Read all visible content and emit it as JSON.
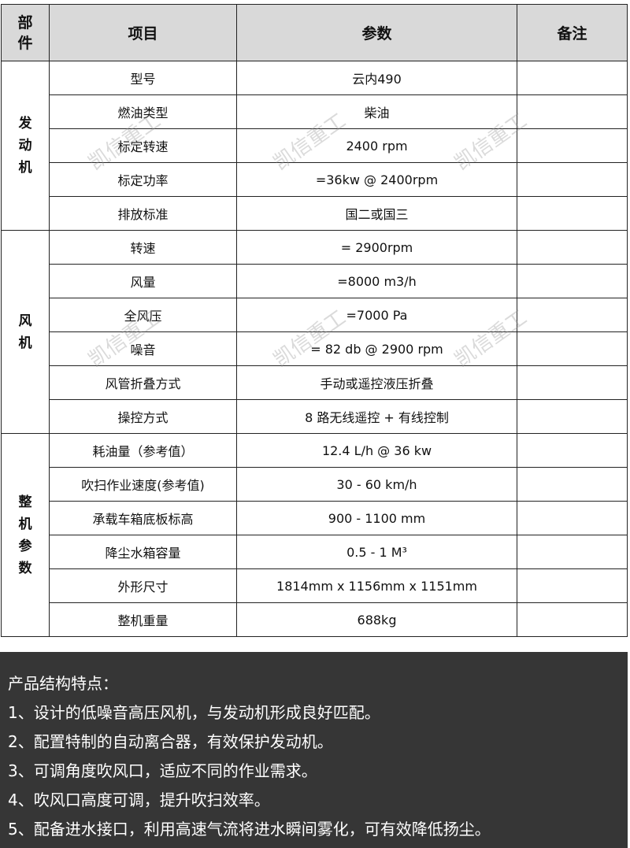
{
  "table": {
    "headers": [
      "部件",
      "项目",
      "参数",
      "备注"
    ],
    "groups": [
      {
        "name": "发动机",
        "rows": [
          {
            "item": "型号",
            "param": "云内490",
            "note": ""
          },
          {
            "item": "燃油类型",
            "param": "柴油",
            "note": ""
          },
          {
            "item": "标定转速",
            "param": "2400 rpm",
            "note": ""
          },
          {
            "item": "标定功率",
            "param": "=36kw @ 2400rpm",
            "note": ""
          },
          {
            "item": "排放标准",
            "param": "国二或国三",
            "note": ""
          }
        ]
      },
      {
        "name": "风机",
        "rows": [
          {
            "item": "转速",
            "param": "= 2900rpm",
            "note": ""
          },
          {
            "item": "风量",
            "param": "=8000 m3/h",
            "note": ""
          },
          {
            "item": "全风压",
            "param": "=7000 Pa",
            "note": ""
          },
          {
            "item": "噪音",
            "param": "= 82 db @ 2900 rpm",
            "note": ""
          },
          {
            "item": "风管折叠方式",
            "param": "手动或遥控液压折叠",
            "note": ""
          },
          {
            "item": "操控方式",
            "param": "8 路无线遥控 + 有线控制",
            "note": ""
          }
        ]
      },
      {
        "name": "整机参数",
        "rows": [
          {
            "item": "耗油量（参考值）",
            "param": "12.4 L/h @ 36 kw",
            "note": ""
          },
          {
            "item": "吹扫作业速度(参考值)",
            "param": "30 - 60 km/h",
            "note": ""
          },
          {
            "item": "承载车箱底板标高",
            "param": "900 - 1100 mm",
            "note": ""
          },
          {
            "item": "降尘水箱容量",
            "param": "0.5 - 1 M³",
            "note": ""
          },
          {
            "item": "外形尺寸",
            "param": "1814mm x 1156mm x 1151mm",
            "note": ""
          },
          {
            "item": "整机重量",
            "param": "688kg",
            "note": ""
          }
        ]
      }
    ]
  },
  "watermark": "凯信重工",
  "features": {
    "title": "产品结构特点：",
    "items": [
      "1、设计的低噪音高压风机，与发动机形成良好匹配。",
      "2、配置特制的自动离合器，有效保护发动机。",
      "3、可调角度吹风口，适应不同的作业需求。",
      "4、吹风口高度可调，提升吹扫效率。",
      "5、配备进水接口，利用高速气流将进水瞬间雾化，可有效降低扬尘。"
    ]
  },
  "colors": {
    "header_bg": "#d9d9d9",
    "features_bg": "#363636"
  }
}
